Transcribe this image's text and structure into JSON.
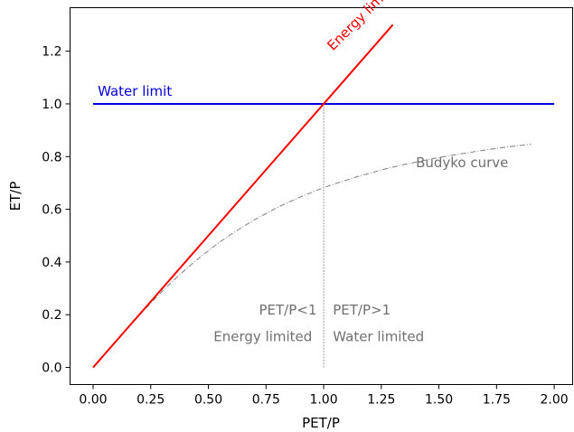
{
  "chart_data": {
    "type": "line",
    "title": "",
    "xlabel": "PET/P",
    "ylabel": "ET/P",
    "xlim": [
      -0.1,
      2.08
    ],
    "ylim": [
      -0.065,
      1.365
    ],
    "x_ticks": [
      0.0,
      0.25,
      0.5,
      0.75,
      1.0,
      1.25,
      1.5,
      1.75,
      2.0
    ],
    "x_tick_labels": [
      "0.00",
      "0.25",
      "0.50",
      "0.75",
      "1.00",
      "1.25",
      "1.50",
      "1.75",
      "2.00"
    ],
    "y_ticks": [
      0.0,
      0.2,
      0.4,
      0.6,
      0.8,
      1.0,
      1.2
    ],
    "y_tick_labels": [
      "0.0",
      "0.2",
      "0.4",
      "0.6",
      "0.8",
      "1.0",
      "1.2"
    ],
    "grid": false,
    "legend": "none",
    "series": [
      {
        "label_text": "Energy limit",
        "color": "#ff0000",
        "style": "solid",
        "x": [
          0.0,
          1.3
        ],
        "y": [
          0.0,
          1.3
        ]
      },
      {
        "label_text": "Water limit",
        "color": "#0000dd",
        "style": "solid",
        "x": [
          0.0,
          2.0
        ],
        "y": [
          1.0,
          1.0
        ]
      },
      {
        "label_text": "Budyko curve",
        "color": "#808080",
        "style": "dashdot",
        "x": [
          0.0,
          0.05,
          0.1,
          0.15,
          0.2,
          0.25,
          0.3,
          0.35,
          0.4,
          0.45,
          0.5,
          0.55,
          0.6,
          0.65,
          0.7,
          0.75,
          0.8,
          0.85,
          0.9,
          0.95,
          1.0,
          1.05,
          1.1,
          1.15,
          1.2,
          1.25,
          1.3,
          1.35,
          1.4,
          1.45,
          1.5,
          1.55,
          1.6,
          1.65,
          1.7,
          1.75,
          1.8,
          1.85,
          1.9
        ],
        "y": [
          0.0,
          0.05,
          0.1,
          0.149,
          0.197,
          0.244,
          0.289,
          0.331,
          0.371,
          0.408,
          0.443,
          0.476,
          0.506,
          0.534,
          0.56,
          0.584,
          0.607,
          0.628,
          0.647,
          0.665,
          0.682,
          0.697,
          0.711,
          0.725,
          0.737,
          0.749,
          0.76,
          0.77,
          0.779,
          0.788,
          0.796,
          0.804,
          0.811,
          0.818,
          0.825,
          0.831,
          0.837,
          0.842,
          0.847
        ]
      },
      {
        "label_text": "",
        "color": "#808080",
        "style": "dotted-thin",
        "x": [
          1.0,
          1.0
        ],
        "y": [
          0.0,
          1.0
        ]
      }
    ],
    "annotations": [
      {
        "text": "Energy limit",
        "x": 1.04,
        "y": 1.2,
        "color": "#ff0000",
        "rotation": -45
      },
      {
        "text": "Water limit",
        "x": 0.02,
        "y": 1.03,
        "color": "#0000dd"
      },
      {
        "text": "Budyko curve",
        "x": 1.4,
        "y": 0.76,
        "color": "#707070"
      },
      {
        "text": "PET/P<1",
        "x": 0.97,
        "y": 0.2,
        "color": "#707070",
        "anchor": "end"
      },
      {
        "text": "PET/P>1",
        "x": 1.04,
        "y": 0.2,
        "color": "#707070",
        "anchor": "start"
      },
      {
        "text": "Energy limited",
        "x": 0.95,
        "y": 0.1,
        "color": "#707070",
        "anchor": "end"
      },
      {
        "text": "Water limited",
        "x": 1.04,
        "y": 0.1,
        "color": "#707070",
        "anchor": "start"
      }
    ]
  }
}
